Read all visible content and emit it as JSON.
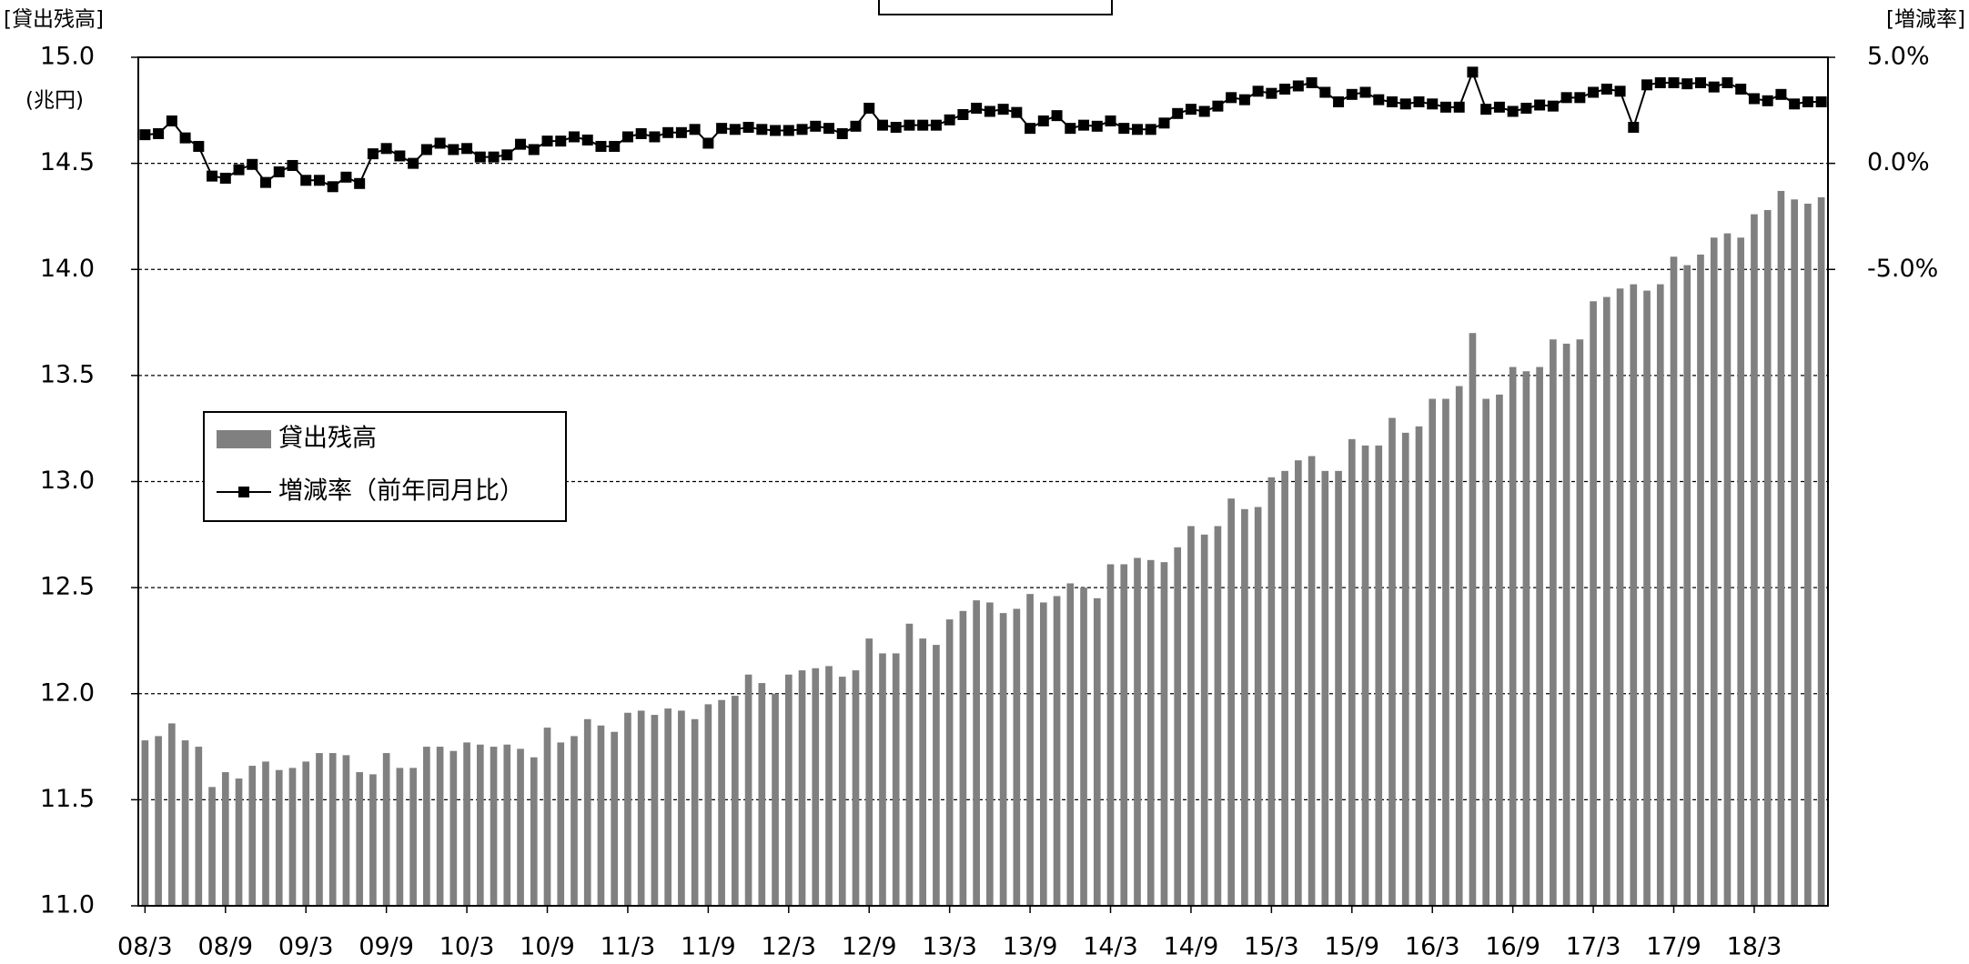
{
  "chart_data": {
    "type": "bar_line",
    "annotations": [
      "[貸出残高]",
      "(兆円)",
      "[増減率]"
    ],
    "categories": [
      "08/3",
      null,
      null,
      null,
      null,
      null,
      "08/9",
      null,
      null,
      null,
      null,
      null,
      "09/3",
      null,
      null,
      null,
      null,
      null,
      "09/9",
      null,
      null,
      null,
      null,
      null,
      "10/3",
      null,
      null,
      null,
      null,
      null,
      "10/9",
      null,
      null,
      null,
      null,
      null,
      "11/3",
      null,
      null,
      null,
      null,
      null,
      "11/9",
      null,
      null,
      null,
      null,
      null,
      "12/3",
      null,
      null,
      null,
      null,
      null,
      "12/9",
      null,
      null,
      null,
      null,
      null,
      "13/3",
      null,
      null,
      null,
      null,
      null,
      "13/9",
      null,
      null,
      null,
      null,
      null,
      "14/3",
      null,
      null,
      null,
      null,
      null,
      "14/9",
      null,
      null,
      null,
      null,
      null,
      "15/3",
      null,
      null,
      null,
      null,
      null,
      "15/9",
      null,
      null,
      null,
      null,
      null,
      "16/3",
      null,
      null,
      null,
      null,
      null,
      "16/9",
      null,
      null,
      null,
      null,
      null,
      "17/3",
      null,
      null,
      null,
      null,
      null,
      "17/9",
      null,
      null,
      null,
      null,
      null,
      "18/3",
      null,
      null,
      null,
      null,
      null
    ],
    "series": [
      {
        "name": "貸出残高",
        "kind": "bar",
        "color": "#808080",
        "values": [
          11.78,
          11.8,
          11.86,
          11.78,
          11.75,
          11.56,
          11.63,
          11.6,
          11.66,
          11.68,
          11.64,
          11.65,
          11.68,
          11.72,
          11.72,
          11.71,
          11.63,
          11.62,
          11.72,
          11.65,
          11.65,
          11.75,
          11.75,
          11.73,
          11.77,
          11.76,
          11.75,
          11.76,
          11.74,
          11.7,
          11.84,
          11.77,
          11.8,
          11.88,
          11.85,
          11.82,
          11.91,
          11.92,
          11.9,
          11.93,
          11.92,
          11.88,
          11.95,
          11.97,
          11.99,
          12.09,
          12.05,
          12.0,
          12.09,
          12.11,
          12.12,
          12.13,
          12.08,
          12.11,
          12.26,
          12.19,
          12.19,
          12.33,
          12.26,
          12.23,
          12.35,
          12.39,
          12.44,
          12.43,
          12.38,
          12.4,
          12.47,
          12.43,
          12.46,
          12.52,
          12.5,
          12.45,
          12.61,
          12.61,
          12.64,
          12.63,
          12.62,
          12.69,
          12.79,
          12.75,
          12.79,
          12.92,
          12.87,
          12.88,
          13.02,
          13.05,
          13.1,
          13.12,
          13.05,
          13.05,
          13.2,
          13.17,
          13.17,
          13.3,
          13.23,
          13.26,
          13.39,
          13.39,
          13.45,
          13.7,
          13.39,
          13.41,
          13.54,
          13.52,
          13.54,
          13.67,
          13.65,
          13.67,
          13.85,
          13.87,
          13.91,
          13.93,
          13.9,
          13.93,
          14.06,
          14.02,
          14.07,
          14.15,
          14.17,
          14.15,
          14.26,
          14.28,
          14.37,
          14.33,
          14.31,
          14.34
        ]
      },
      {
        "name": "増減率（前年同月比）",
        "kind": "line",
        "axis": "y2",
        "color": "#000000",
        "values": [
          1.35,
          1.4,
          2.0,
          1.2,
          0.8,
          -0.6,
          -0.7,
          -0.3,
          -0.05,
          -0.9,
          -0.4,
          -0.1,
          -0.8,
          -0.8,
          -1.1,
          -0.65,
          -0.95,
          0.45,
          0.7,
          0.35,
          0,
          0.65,
          0.95,
          0.65,
          0.7,
          0.3,
          0.3,
          0.4,
          0.9,
          0.65,
          1.05,
          1.05,
          1.25,
          1.1,
          0.8,
          0.8,
          1.25,
          1.4,
          1.25,
          1.45,
          1.45,
          1.6,
          0.95,
          1.65,
          1.6,
          1.7,
          1.6,
          1.55,
          1.55,
          1.6,
          1.75,
          1.65,
          1.4,
          1.75,
          2.6,
          1.8,
          1.7,
          1.8,
          1.8,
          1.8,
          2.05,
          2.3,
          2.6,
          2.45,
          2.55,
          2.4,
          1.65,
          2.0,
          2.25,
          1.65,
          1.8,
          1.75,
          2.0,
          1.65,
          1.6,
          1.6,
          1.9,
          2.35,
          2.55,
          2.45,
          2.7,
          3.1,
          3.0,
          3.4,
          3.3,
          3.5,
          3.65,
          3.8,
          3.35,
          2.9,
          3.25,
          3.35,
          3.0,
          2.9,
          2.8,
          2.9,
          2.8,
          2.65,
          2.65,
          4.3,
          2.55,
          2.65,
          2.45,
          2.6,
          2.75,
          2.7,
          3.1,
          3.1,
          3.35,
          3.5,
          3.4,
          1.7,
          3.7,
          3.8,
          3.8,
          3.75,
          3.8,
          3.6,
          3.8,
          3.5,
          3.05,
          2.95,
          3.25,
          2.8,
          2.9,
          2.9
        ]
      }
    ],
    "ylim": [
      11,
      15
    ],
    "yticks": [
      {
        "value": 11,
        "label": "11.0"
      },
      {
        "value": 11.5,
        "label": "11.5"
      },
      {
        "value": 12,
        "label": "12.0"
      },
      {
        "value": 12.5,
        "label": "12.5"
      },
      {
        "value": 13,
        "label": "13.0"
      },
      {
        "value": 13.5,
        "label": "13.5"
      },
      {
        "value": 14,
        "label": "14.0"
      },
      {
        "value": 14.5,
        "label": "14.5"
      },
      {
        "value": 15,
        "label": "15.0"
      }
    ],
    "y2lim": [
      -35,
      5
    ],
    "y2ticks": [
      {
        "value": -5,
        "label": "-5.0%"
      },
      {
        "value": 0,
        "label": "0.0%"
      },
      {
        "value": 5,
        "label": "5.0%"
      }
    ],
    "grid": true,
    "legend": "upper left"
  }
}
